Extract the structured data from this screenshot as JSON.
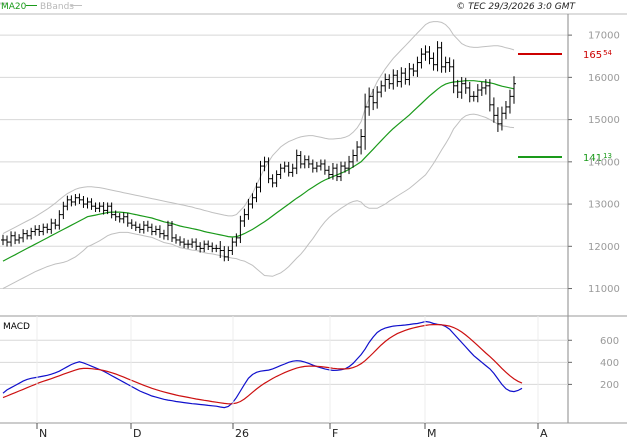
{
  "header": {
    "legend_ma": "MA20",
    "legend_bb": "BBands",
    "copyright": "© TEC 29/3/2026 3:0 GMT"
  },
  "colors": {
    "background": "#ffffff",
    "grid": "#d8d8d8",
    "price_bars": "#000000",
    "ma20": "#1a9a1a",
    "bbands": "#c0c0c0",
    "resistance": "#cc0000",
    "support": "#1a9a1a",
    "macd_line": "#1010cc",
    "signal_line": "#cc1010"
  },
  "chart_data": [
    {
      "type": "ohlc",
      "title": "",
      "xlabel": "",
      "ylabel": "",
      "ylim": [
        10350,
        17500
      ],
      "y_ticks": [
        {
          "value": 11000,
          "label": "11000"
        },
        {
          "value": 12000,
          "label": "12000"
        },
        {
          "value": 13000,
          "label": "13000"
        },
        {
          "value": 14000,
          "label": "14000"
        },
        {
          "value": 15000,
          "label": "15000"
        },
        {
          "value": 16000,
          "label": "16000"
        },
        {
          "value": 17000,
          "label": "17000"
        }
      ],
      "x_ticks": [
        "N",
        "D",
        "26",
        "F",
        "M",
        "A"
      ],
      "grid": true,
      "levels": [
        {
          "value": 16554,
          "label_main": "165",
          "label_sup": "54",
          "color": "#cc0000"
        },
        {
          "value": 14113,
          "label_main": "141",
          "label_sup": "13",
          "color": "#1a9a1a"
        }
      ],
      "close": [
        12150,
        12100,
        12250,
        12150,
        12200,
        12300,
        12250,
        12350,
        12400,
        12350,
        12450,
        12400,
        12550,
        12500,
        12750,
        12950,
        13100,
        13050,
        13150,
        13100,
        13000,
        13050,
        12950,
        12900,
        12950,
        12850,
        12950,
        12750,
        12700,
        12650,
        12700,
        12550,
        12500,
        12450,
        12400,
        12500,
        12450,
        12350,
        12400,
        12300,
        12250,
        12500,
        12200,
        12150,
        12100,
        12050,
        12050,
        12100,
        12000,
        11950,
        12050,
        12000,
        11950,
        11950,
        11900,
        11750,
        11900,
        12100,
        12200,
        12600,
        12750,
        13000,
        13150,
        13400,
        13900,
        14000,
        13600,
        13500,
        13700,
        13850,
        13900,
        13750,
        13850,
        14150,
        13950,
        14050,
        13950,
        13850,
        13900,
        13950,
        13800,
        13700,
        13850,
        13650,
        13900,
        13850,
        14000,
        14150,
        14350,
        14600,
        15300,
        15550,
        15400,
        15650,
        15800,
        15950,
        15850,
        16050,
        15900,
        16100,
        15950,
        16200,
        16150,
        16350,
        16550,
        16600,
        16450,
        16300,
        16700,
        16250,
        16350,
        16250,
        15800,
        15650,
        15850,
        15750,
        15550,
        15550,
        15700,
        15750,
        15800,
        15350,
        15100,
        14900,
        15150,
        15300,
        15550,
        15850
      ],
      "range": [
        350,
        300,
        300,
        280,
        250,
        300,
        250,
        250,
        280,
        300,
        250,
        260,
        300,
        280,
        300,
        300,
        280,
        300,
        250,
        280,
        260,
        300,
        250,
        250,
        260,
        280,
        250,
        250,
        280,
        250,
        300,
        250,
        260,
        250,
        250,
        280,
        300,
        250,
        250,
        280,
        260,
        300,
        280,
        250,
        250,
        260,
        300,
        250,
        250,
        280,
        250,
        250,
        260,
        250,
        500,
        300,
        280,
        300,
        300,
        350,
        400,
        350,
        300,
        300,
        350,
        350,
        300,
        300,
        280,
        300,
        300,
        280,
        300,
        400,
        300,
        300,
        280,
        300,
        280,
        300,
        300,
        300,
        350,
        300,
        300,
        300,
        400,
        400,
        400,
        500,
        900,
        600,
        500,
        400,
        350,
        400,
        350,
        400,
        350,
        400,
        350,
        400,
        350,
        400,
        400,
        450,
        400,
        400,
        450,
        400,
        400,
        350,
        500,
        400,
        450,
        400,
        400,
        350,
        400,
        400,
        450,
        450,
        500,
        550,
        450,
        400,
        450,
        500
      ],
      "ma20": [
        11650,
        11700,
        11750,
        11800,
        11850,
        11900,
        11950,
        12000,
        12050,
        12100,
        12150,
        12200,
        12250,
        12300,
        12350,
        12400,
        12450,
        12500,
        12550,
        12600,
        12650,
        12700,
        12720,
        12740,
        12760,
        12780,
        12800,
        12810,
        12810,
        12810,
        12800,
        12790,
        12770,
        12750,
        12730,
        12710,
        12690,
        12670,
        12640,
        12610,
        12580,
        12560,
        12540,
        12510,
        12480,
        12460,
        12440,
        12420,
        12400,
        12380,
        12350,
        12330,
        12310,
        12290,
        12270,
        12250,
        12230,
        12220,
        12230,
        12260,
        12300,
        12350,
        12400,
        12460,
        12520,
        12580,
        12650,
        12720,
        12790,
        12860,
        12930,
        13000,
        13070,
        13140,
        13200,
        13270,
        13340,
        13400,
        13460,
        13520,
        13570,
        13610,
        13650,
        13690,
        13730,
        13770,
        13820,
        13880,
        13940,
        14000,
        14100,
        14200,
        14300,
        14400,
        14500,
        14600,
        14700,
        14790,
        14870,
        14950,
        15030,
        15110,
        15200,
        15290,
        15380,
        15470,
        15560,
        15640,
        15720,
        15790,
        15840,
        15870,
        15890,
        15900,
        15910,
        15920,
        15920,
        15920,
        15910,
        15900,
        15890,
        15870,
        15850,
        15820,
        15790,
        15770,
        15750,
        15730
      ],
      "bb_upper": [
        12300,
        12350,
        12400,
        12450,
        12500,
        12550,
        12600,
        12650,
        12700,
        12760,
        12820,
        12880,
        12950,
        13020,
        13100,
        13180,
        13250,
        13300,
        13350,
        13380,
        13400,
        13410,
        13410,
        13400,
        13390,
        13370,
        13350,
        13330,
        13310,
        13290,
        13270,
        13250,
        13230,
        13210,
        13190,
        13170,
        13150,
        13130,
        13110,
        13090,
        13070,
        13050,
        13030,
        13010,
        12990,
        12970,
        12950,
        12930,
        12900,
        12880,
        12850,
        12830,
        12800,
        12780,
        12760,
        12740,
        12720,
        12720,
        12750,
        12850,
        12950,
        13100,
        13250,
        13450,
        13650,
        13850,
        14000,
        14150,
        14250,
        14350,
        14420,
        14480,
        14520,
        14560,
        14590,
        14610,
        14620,
        14620,
        14600,
        14580,
        14560,
        14540,
        14540,
        14550,
        14560,
        14580,
        14620,
        14700,
        14800,
        14950,
        15250,
        15500,
        15700,
        15900,
        16050,
        16200,
        16330,
        16450,
        16550,
        16650,
        16750,
        16850,
        16950,
        17050,
        17150,
        17250,
        17300,
        17320,
        17320,
        17300,
        17250,
        17150,
        17000,
        16900,
        16800,
        16750,
        16720,
        16710,
        16710,
        16720,
        16730,
        16740,
        16750,
        16750,
        16730,
        16700,
        16680,
        16650
      ],
      "bb_lower": [
        11000,
        11050,
        11100,
        11150,
        11200,
        11250,
        11300,
        11350,
        11400,
        11440,
        11480,
        11520,
        11550,
        11580,
        11600,
        11620,
        11650,
        11700,
        11750,
        11820,
        11900,
        11990,
        12030,
        12080,
        12130,
        12190,
        12250,
        12290,
        12310,
        12330,
        12330,
        12330,
        12310,
        12290,
        12270,
        12250,
        12230,
        12210,
        12170,
        12130,
        12090,
        12070,
        12050,
        12010,
        11970,
        11950,
        11930,
        11910,
        11900,
        11880,
        11850,
        11830,
        11820,
        11800,
        11780,
        11760,
        11740,
        11720,
        11710,
        11670,
        11650,
        11600,
        11550,
        11470,
        11390,
        11310,
        11300,
        11290,
        11330,
        11370,
        11440,
        11520,
        11620,
        11720,
        11810,
        11930,
        12060,
        12180,
        12320,
        12460,
        12580,
        12680,
        12760,
        12830,
        12900,
        12960,
        13020,
        13060,
        13080,
        13050,
        12950,
        12900,
        12900,
        12900,
        12950,
        13000,
        13070,
        13130,
        13190,
        13250,
        13310,
        13370,
        13450,
        13530,
        13610,
        13690,
        13820,
        13960,
        14120,
        14280,
        14430,
        14590,
        14780,
        14900,
        15020,
        15090,
        15120,
        15130,
        15110,
        15080,
        15050,
        15000,
        14950,
        14890,
        14850,
        14840,
        14820,
        14810
      ]
    },
    {
      "type": "line",
      "title": "MACD",
      "xlabel": "",
      "ylabel": "",
      "ylim": [
        -150,
        820
      ],
      "y_ticks": [
        {
          "value": 200,
          "label": "200"
        },
        {
          "value": 400,
          "label": "400"
        },
        {
          "value": 600,
          "label": "600"
        }
      ],
      "grid": true,
      "series": [
        {
          "color": "#1010cc",
          "values": [
            120,
            150,
            170,
            190,
            210,
            230,
            245,
            255,
            262,
            268,
            275,
            282,
            292,
            305,
            320,
            340,
            360,
            380,
            395,
            405,
            395,
            380,
            365,
            350,
            335,
            320,
            300,
            280,
            260,
            240,
            220,
            200,
            180,
            160,
            140,
            125,
            110,
            95,
            85,
            75,
            65,
            58,
            52,
            45,
            40,
            35,
            30,
            25,
            22,
            18,
            14,
            10,
            6,
            2,
            -5,
            -10,
            0,
            30,
            80,
            140,
            200,
            255,
            290,
            310,
            320,
            325,
            330,
            340,
            355,
            370,
            385,
            400,
            410,
            415,
            412,
            402,
            390,
            375,
            362,
            350,
            340,
            332,
            327,
            328,
            332,
            340,
            360,
            390,
            430,
            470,
            520,
            580,
            630,
            670,
            695,
            710,
            720,
            728,
            732,
            735,
            738,
            743,
            748,
            752,
            760,
            770,
            765,
            752,
            745,
            740,
            725,
            700,
            660,
            620,
            580,
            540,
            500,
            460,
            430,
            400,
            370,
            340,
            300,
            250,
            200,
            160,
            140,
            135,
            145,
            165
          ]
        },
        {
          "color": "#cc1010",
          "values": [
            80,
            95,
            110,
            125,
            140,
            155,
            170,
            185,
            200,
            215,
            228,
            240,
            252,
            265,
            278,
            292,
            305,
            318,
            330,
            340,
            345,
            345,
            342,
            338,
            333,
            326,
            317,
            306,
            294,
            280,
            266,
            251,
            236,
            221,
            206,
            192,
            178,
            165,
            153,
            142,
            132,
            122,
            113,
            104,
            96,
            89,
            82,
            75,
            68,
            62,
            56,
            50,
            44,
            39,
            33,
            28,
            24,
            24,
            31,
            45,
            68,
            97,
            128,
            158,
            185,
            210,
            232,
            253,
            272,
            290,
            307,
            322,
            336,
            348,
            357,
            363,
            366,
            366,
            364,
            361,
            357,
            352,
            346,
            342,
            340,
            340,
            343,
            352,
            367,
            388,
            415,
            448,
            485,
            522,
            557,
            589,
            617,
            640,
            660,
            676,
            690,
            702,
            712,
            720,
            728,
            735,
            740,
            742,
            742,
            740,
            735,
            728,
            716,
            698,
            675,
            648,
            618,
            585,
            552,
            518,
            485,
            452,
            418,
            382,
            345,
            310,
            278,
            250,
            228,
            212
          ]
        }
      ]
    }
  ]
}
